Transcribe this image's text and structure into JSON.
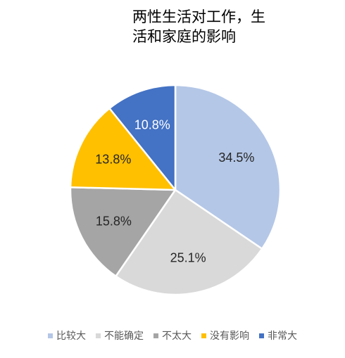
{
  "chart_data": {
    "type": "pie",
    "title": "两性生活对工作，生活和家庭的影响",
    "title_lines": [
      "两性生活对工作，生",
      "活和家庭的影响"
    ],
    "categories": [
      "比较大",
      "不能确定",
      "不太大",
      "没有影响",
      "非常大"
    ],
    "values": [
      34.5,
      25.1,
      15.8,
      13.8,
      10.8
    ],
    "labels": [
      "34.5%",
      "25.1%",
      "15.8%",
      "13.8%",
      "10.8%"
    ],
    "colors": [
      "#B4C7E7",
      "#D9D9D9",
      "#A5A5A5",
      "#FFC000",
      "#4472C4"
    ],
    "label_colors": [
      "#262626",
      "#262626",
      "#262626",
      "#262626",
      "#FFFFFF"
    ],
    "start": "12 o'clock",
    "direction": "clockwise",
    "legend_position": "bottom"
  }
}
